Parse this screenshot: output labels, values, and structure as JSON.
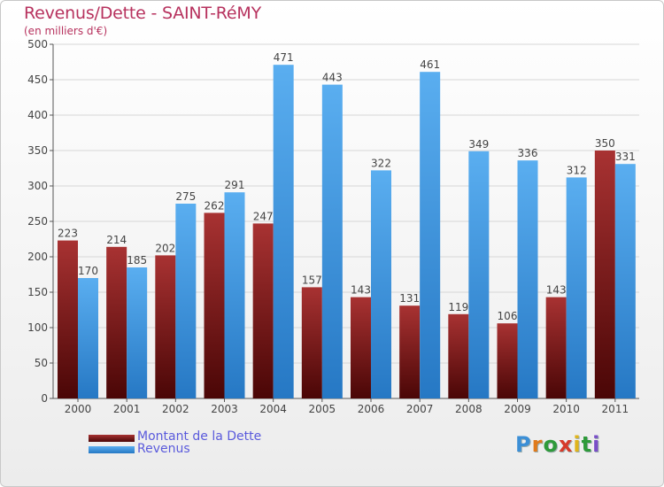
{
  "chart_data": {
    "type": "bar",
    "title": "Revenus/Dette - SAINT-RéMY",
    "subtitle": "(en milliers d'€)",
    "categories": [
      "2000",
      "2001",
      "2002",
      "2003",
      "2004",
      "2005",
      "2006",
      "2007",
      "2008",
      "2009",
      "2010",
      "2011"
    ],
    "series": [
      {
        "name": "Montant de la Dette",
        "color": "#7a1515",
        "values": [
          223,
          214,
          202,
          262,
          247,
          157,
          143,
          131,
          119,
          106,
          143,
          350
        ]
      },
      {
        "name": "Revenus",
        "color": "#3d9be0",
        "values": [
          170,
          185,
          275,
          291,
          471,
          443,
          322,
          461,
          349,
          336,
          312,
          331
        ]
      }
    ],
    "ylim": [
      0,
      500
    ],
    "yticks": [
      0,
      50,
      100,
      150,
      200,
      250,
      300,
      350,
      400,
      450,
      500
    ],
    "grid": true,
    "legend_position": "bottom-left"
  },
  "logo": {
    "letters": [
      "P",
      "r",
      "o",
      "x",
      "i",
      "t",
      "i"
    ],
    "colors": [
      "#3c8fd6",
      "#e07a1b",
      "#2e9a3a",
      "#d63a2a",
      "#e0b41b",
      "#2e9a3a",
      "#7a4fc8"
    ]
  }
}
